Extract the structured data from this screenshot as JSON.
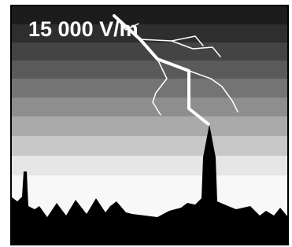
{
  "label": "15 000 V/m"
}
